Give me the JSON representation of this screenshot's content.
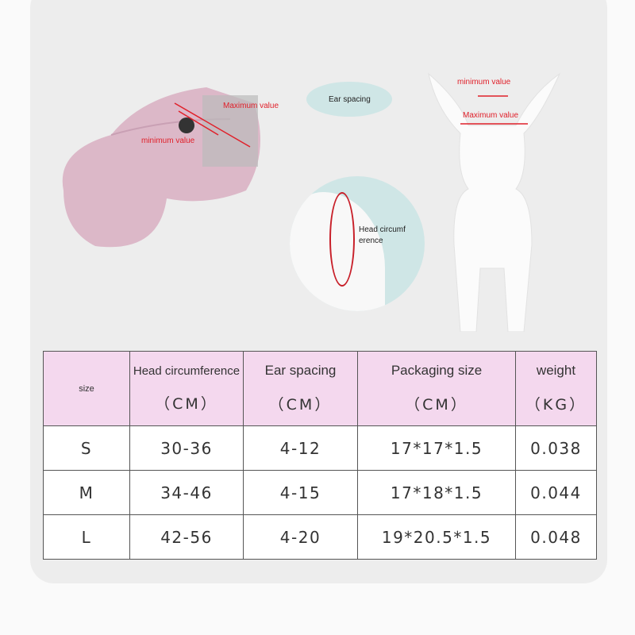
{
  "annotations": {
    "maximum_value": "Maximum value",
    "minimum_value": "minimum value",
    "ear_spacing": "Ear spacing",
    "head_circumference": "Head circumf erence",
    "dog_minimum": "minimum value",
    "dog_maximum": "Maximum value"
  },
  "table": {
    "headers": [
      {
        "label": "size",
        "unit": ""
      },
      {
        "label": "Head circumference",
        "unit": "（CM）"
      },
      {
        "label": "Ear spacing",
        "unit": "（CM）"
      },
      {
        "label": "Packaging size",
        "unit": "（CM）"
      },
      {
        "label": "weight",
        "unit": "（KG）"
      }
    ],
    "rows": [
      [
        "S",
        "30-36",
        "4-12",
        "17*17*1.5",
        "0.038"
      ],
      [
        "M",
        "34-46",
        "4-15",
        "17*18*1.5",
        "0.044"
      ],
      [
        "L",
        "42-56",
        "4-20",
        "19*20.5*1.5",
        "0.048"
      ]
    ]
  },
  "colors": {
    "header_bg": "#f4d8ee",
    "annotation": "#e0202a",
    "cap": "#dcb8c8"
  }
}
